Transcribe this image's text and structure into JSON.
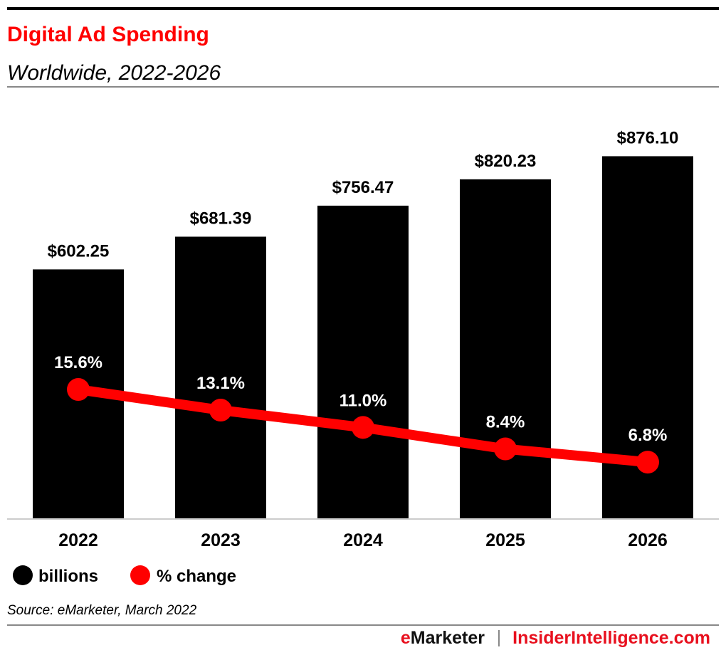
{
  "chart_data": {
    "type": "bar",
    "title": "Digital Ad Spending",
    "subtitle": "Worldwide, 2022-2026",
    "categories": [
      "2022",
      "2023",
      "2024",
      "2025",
      "2026"
    ],
    "series": [
      {
        "name": "billions",
        "type": "bar",
        "color": "#000000",
        "values": [
          602.25,
          681.39,
          756.47,
          820.23,
          876.1
        ],
        "labels": [
          "$602.25",
          "$681.39",
          "$756.47",
          "$820.23",
          "$876.10"
        ]
      },
      {
        "name": "% change",
        "type": "line",
        "color": "#ff0000",
        "values": [
          15.6,
          13.1,
          11.0,
          8.4,
          6.8
        ],
        "labels": [
          "15.6%",
          "13.1%",
          "11.0%",
          "8.4%",
          "6.8%"
        ]
      }
    ],
    "legend": "bottom-left",
    "grid": false,
    "source": "Source: eMarketer, March 2022"
  },
  "footer": {
    "brand": "eMarketer",
    "separator": "|",
    "site": "InsiderIntelligence.com"
  },
  "colors": {
    "title": "#ff0000",
    "bar": "#000000",
    "line": "#ff0000"
  }
}
